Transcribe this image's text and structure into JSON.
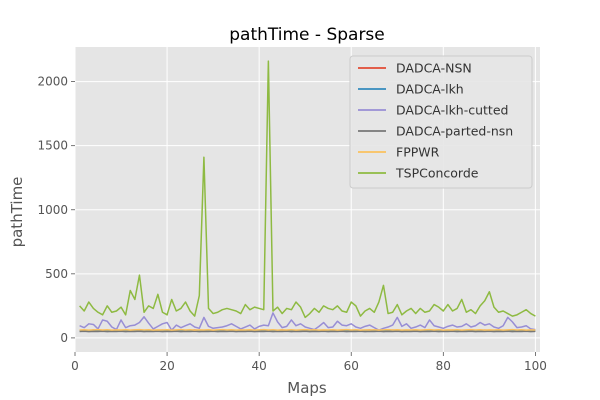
{
  "chart_data": {
    "type": "line",
    "title": "pathTime - Sparse",
    "xlabel": "Maps",
    "ylabel": "pathTime",
    "xlim": [
      0,
      101
    ],
    "ylim": [
      -110,
      2270
    ],
    "xticks": [
      0,
      20,
      40,
      60,
      80,
      100
    ],
    "yticks": [
      0,
      500,
      1000,
      1500,
      2000
    ],
    "grid": true,
    "legend_position": "top-right",
    "x": [
      1,
      2,
      3,
      4,
      5,
      6,
      7,
      8,
      9,
      10,
      11,
      12,
      13,
      14,
      15,
      16,
      17,
      18,
      19,
      20,
      21,
      22,
      23,
      24,
      25,
      26,
      27,
      28,
      29,
      30,
      31,
      32,
      33,
      34,
      35,
      36,
      37,
      38,
      39,
      40,
      41,
      42,
      43,
      44,
      45,
      46,
      47,
      48,
      49,
      50,
      51,
      52,
      53,
      54,
      55,
      56,
      57,
      58,
      59,
      60,
      61,
      62,
      63,
      64,
      65,
      66,
      67,
      68,
      69,
      70,
      71,
      72,
      73,
      74,
      75,
      76,
      77,
      78,
      79,
      80,
      81,
      82,
      83,
      84,
      85,
      86,
      87,
      88,
      89,
      90,
      91,
      92,
      93,
      94,
      95,
      96,
      97,
      98,
      99,
      100
    ],
    "series": [
      {
        "name": "DADCA-NSN",
        "color": "#E24A33",
        "values": [
          58,
          60,
          57,
          62,
          59,
          58,
          61,
          57,
          60,
          59,
          58,
          60,
          61,
          59,
          58,
          60,
          57,
          59,
          61,
          58,
          60,
          59,
          57,
          60,
          58,
          62,
          59,
          58,
          60,
          57,
          59,
          61,
          58,
          60,
          59,
          57,
          60,
          58,
          61,
          59,
          58,
          60,
          57,
          59,
          62,
          58,
          60,
          59,
          57,
          60,
          58,
          61,
          59,
          58,
          60,
          57,
          59,
          61,
          58,
          60,
          59,
          57,
          60,
          62,
          58,
          60,
          59,
          57,
          61,
          58,
          60,
          59,
          57,
          60,
          58,
          61,
          59,
          58,
          60,
          57,
          59,
          61,
          58,
          60,
          59,
          57,
          60,
          58,
          61,
          59,
          58,
          60,
          57,
          59,
          61,
          58,
          60,
          59,
          57,
          60
        ]
      },
      {
        "name": "DADCA-lkh",
        "color": "#348ABD",
        "values": [
          55,
          57,
          54,
          56,
          58,
          55,
          57,
          54,
          56,
          55,
          57,
          54,
          56,
          58,
          55,
          57,
          54,
          56,
          55,
          57,
          54,
          56,
          58,
          55,
          57,
          54,
          56,
          55,
          57,
          54,
          56,
          58,
          55,
          57,
          54,
          56,
          55,
          57,
          54,
          56,
          58,
          55,
          57,
          54,
          56,
          55,
          57,
          54,
          56,
          58,
          55,
          57,
          54,
          56,
          55,
          57,
          54,
          56,
          58,
          55,
          57,
          54,
          56,
          55,
          57,
          54,
          56,
          58,
          55,
          57,
          54,
          56,
          55,
          57,
          54,
          56,
          58,
          55,
          57,
          54,
          56,
          55,
          57,
          54,
          56,
          58,
          55,
          57,
          54,
          56,
          55,
          57,
          54,
          56,
          58,
          55,
          57,
          54,
          56,
          55
        ]
      },
      {
        "name": "DADCA-lkh-cutted",
        "color": "#988ED5",
        "values": [
          95,
          80,
          110,
          105,
          70,
          140,
          130,
          85,
          65,
          140,
          80,
          95,
          100,
          120,
          165,
          115,
          70,
          90,
          110,
          120,
          60,
          100,
          80,
          95,
          110,
          85,
          75,
          160,
          90,
          75,
          80,
          85,
          95,
          110,
          90,
          70,
          85,
          100,
          70,
          90,
          100,
          95,
          195,
          125,
          80,
          90,
          140,
          95,
          110,
          85,
          75,
          65,
          90,
          120,
          80,
          85,
          130,
          100,
          95,
          110,
          85,
          75,
          90,
          100,
          80,
          60,
          75,
          85,
          100,
          160,
          90,
          110,
          75,
          85,
          100,
          80,
          140,
          95,
          85,
          75,
          90,
          100,
          85,
          90,
          110,
          85,
          95,
          120,
          100,
          110,
          85,
          75,
          95,
          160,
          125,
          80,
          85,
          95,
          70,
          65
        ]
      },
      {
        "name": "DADCA-parted-nsn",
        "color": "#777777",
        "values": [
          50,
          52,
          49,
          51,
          50,
          52,
          49,
          51,
          50,
          52,
          49,
          51,
          50,
          52,
          49,
          51,
          50,
          52,
          49,
          51,
          50,
          52,
          49,
          51,
          50,
          52,
          49,
          51,
          50,
          52,
          49,
          51,
          50,
          52,
          49,
          51,
          50,
          52,
          49,
          51,
          50,
          52,
          49,
          51,
          50,
          52,
          49,
          51,
          50,
          52,
          49,
          51,
          50,
          52,
          49,
          51,
          50,
          52,
          49,
          51,
          50,
          52,
          49,
          51,
          50,
          52,
          49,
          51,
          50,
          52,
          49,
          51,
          50,
          52,
          49,
          51,
          50,
          52,
          49,
          51,
          50,
          52,
          49,
          51,
          50,
          52,
          49,
          51,
          50,
          52,
          49,
          51,
          50,
          52,
          49,
          51,
          50,
          52,
          49,
          51
        ]
      },
      {
        "name": "FPPWR",
        "color": "#FBC15E",
        "values": [
          62,
          64,
          61,
          63,
          65,
          62,
          64,
          61,
          63,
          62,
          64,
          61,
          63,
          65,
          62,
          64,
          61,
          63,
          62,
          64,
          61,
          63,
          65,
          62,
          64,
          61,
          63,
          62,
          64,
          61,
          63,
          65,
          62,
          64,
          61,
          63,
          62,
          64,
          61,
          63,
          65,
          62,
          64,
          61,
          63,
          62,
          64,
          61,
          63,
          65,
          62,
          64,
          61,
          63,
          62,
          64,
          61,
          63,
          65,
          62,
          64,
          61,
          63,
          62,
          64,
          61,
          63,
          65,
          62,
          64,
          61,
          63,
          62,
          64,
          61,
          63,
          65,
          62,
          64,
          61,
          63,
          62,
          64,
          61,
          63,
          65,
          62,
          64,
          61,
          63,
          62,
          64,
          61,
          63,
          65,
          62,
          64,
          61,
          63,
          62
        ]
      },
      {
        "name": "TSPConcorde",
        "color": "#8EBA42",
        "values": [
          250,
          210,
          280,
          230,
          200,
          180,
          250,
          200,
          210,
          240,
          180,
          370,
          300,
          490,
          200,
          250,
          230,
          340,
          200,
          180,
          300,
          210,
          230,
          280,
          210,
          170,
          330,
          1410,
          230,
          190,
          200,
          220,
          230,
          220,
          210,
          190,
          260,
          220,
          240,
          230,
          220,
          2160,
          210,
          240,
          190,
          230,
          220,
          280,
          240,
          160,
          190,
          230,
          200,
          250,
          230,
          220,
          250,
          210,
          200,
          280,
          250,
          170,
          210,
          230,
          200,
          280,
          410,
          190,
          200,
          260,
          180,
          210,
          230,
          190,
          230,
          200,
          210,
          260,
          240,
          210,
          260,
          210,
          230,
          300,
          200,
          220,
          190,
          250,
          290,
          360,
          240,
          200,
          210,
          190,
          170,
          180,
          200,
          220,
          190,
          170
        ]
      }
    ]
  }
}
